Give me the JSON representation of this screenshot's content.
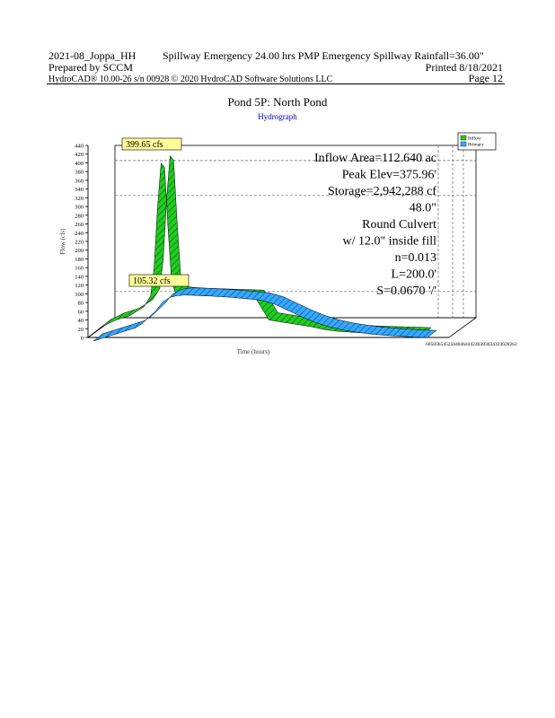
{
  "header": {
    "project": "2021-08_Joppa_HH",
    "storm": "Spillway Emergency 24.00 hrs  PMP Emergency Spillway Rainfall=36.00\"",
    "prepared_by": "Prepared by SCCM",
    "printed": "Printed  8/18/2021",
    "software": "HydroCAD® 10.00-26  s/n 00928  © 2020 HydroCAD Software Solutions LLC",
    "page": "Page 12"
  },
  "chart_data": {
    "type": "area",
    "title": "Pond 5P: North Pond",
    "subtitle": "Hydrograph",
    "xlabel": "Time (hours)",
    "ylabel": "Flow (cfs)",
    "ylim": [
      0,
      440
    ],
    "yticks": [
      0,
      20,
      40,
      60,
      80,
      100,
      120,
      140,
      160,
      180,
      200,
      220,
      240,
      260,
      280,
      300,
      320,
      340,
      360,
      380,
      400,
      420,
      440
    ],
    "x_tick_labels_text": "6058565452504846444240383634323028262",
    "legend": {
      "placement": "top-right",
      "entries": [
        {
          "name": "Inflow",
          "color": "#22cc22"
        },
        {
          "name": "Primary",
          "color": "#33aaff"
        }
      ]
    },
    "series": [
      {
        "name": "Inflow",
        "color": "#22cc22",
        "x": [
          0,
          2,
          4,
          6,
          7,
          8,
          9,
          9.5,
          10,
          10.5,
          11,
          11.5,
          12,
          12.5,
          13,
          14,
          15,
          16,
          18,
          20,
          22,
          24,
          26,
          28,
          30,
          32,
          34,
          36,
          38,
          40,
          42,
          44,
          46,
          48
        ],
        "values": [
          0,
          25,
          40,
          50,
          60,
          70,
          95,
          160,
          300,
          399.65,
          390,
          250,
          130,
          105,
          100,
          98,
          97,
          96,
          95,
          94,
          93,
          92,
          40,
          35,
          30,
          25,
          18,
          14,
          12,
          10,
          9,
          8,
          7,
          6
        ]
      },
      {
        "name": "Primary",
        "color": "#33aaff",
        "x": [
          0,
          2,
          4,
          6,
          7,
          8,
          9,
          10,
          11,
          12,
          13,
          14,
          16,
          18,
          20,
          22,
          24,
          26,
          28,
          30,
          32,
          34,
          36,
          38,
          40,
          42,
          44,
          46,
          48
        ],
        "values": [
          0,
          10,
          20,
          30,
          40,
          55,
          70,
          90,
          100,
          104,
          105.32,
          105,
          104,
          102,
          100,
          97,
          94,
          85,
          70,
          55,
          42,
          32,
          25,
          20,
          16,
          13,
          11,
          9,
          8
        ]
      }
    ],
    "annotations": {
      "peak_inflow_label": "399.65 cfs",
      "peak_primary_label": "105.32 cfs",
      "info_lines": [
        "Inflow Area=112.640 ac",
        "Peak Elev=375.96'",
        "Storage=2,942,288 cf",
        "48.0\"",
        "Round Culvert",
        "w/ 12.0\" inside fill",
        "n=0.013",
        "L=200.0'",
        "S=0.0670 '/'"
      ]
    },
    "grid": true
  }
}
